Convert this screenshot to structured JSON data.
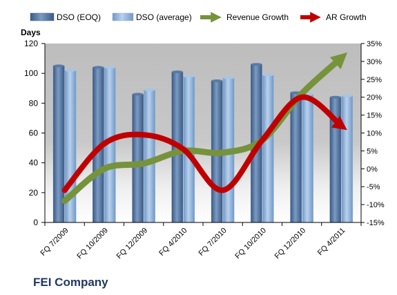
{
  "company": "FEI Company",
  "colors": {
    "bar_eoq": "#4a6a93",
    "bar_avg": "#8fb3dc",
    "revenue": "#76933c",
    "ar": "#c00000"
  },
  "chart_data": {
    "type": "bar",
    "categories": [
      "FQ 7/2009",
      "FQ 10/2009",
      "FQ 12/2009",
      "FQ 4/2010",
      "FQ 7/2010",
      "FQ 10/2010",
      "FQ 12/2010",
      "FQ 4/2011"
    ],
    "series": [
      {
        "name": "DSO (EOQ)",
        "kind": "bar",
        "axis": "left",
        "values": [
          105,
          104,
          86,
          101,
          95,
          106,
          87,
          84
        ]
      },
      {
        "name": "DSO (average)",
        "kind": "bar",
        "axis": "left",
        "values": [
          102,
          104,
          89,
          98,
          97,
          99,
          86,
          85
        ]
      },
      {
        "name": "Revenue Growth",
        "kind": "line",
        "axis": "right",
        "unit": "%",
        "values": [
          -9,
          0,
          1.5,
          5,
          4.5,
          8,
          21,
          31
        ]
      },
      {
        "name": "AR Growth",
        "kind": "line",
        "axis": "right",
        "unit": "%",
        "values": [
          -6,
          7,
          9.5,
          5.5,
          -6,
          8,
          20,
          12
        ]
      }
    ],
    "ylabel": "Days",
    "ylim": [
      0,
      120
    ],
    "yticks": [
      0,
      20,
      40,
      60,
      80,
      100,
      120
    ],
    "y2lim": [
      -15,
      35
    ],
    "y2ticks": [
      "-15%",
      "-10%",
      "-5%",
      "0%",
      "5%",
      "10%",
      "15%",
      "20%",
      "25%",
      "30%",
      "35%"
    ],
    "legend_position": "top",
    "grid": false
  }
}
